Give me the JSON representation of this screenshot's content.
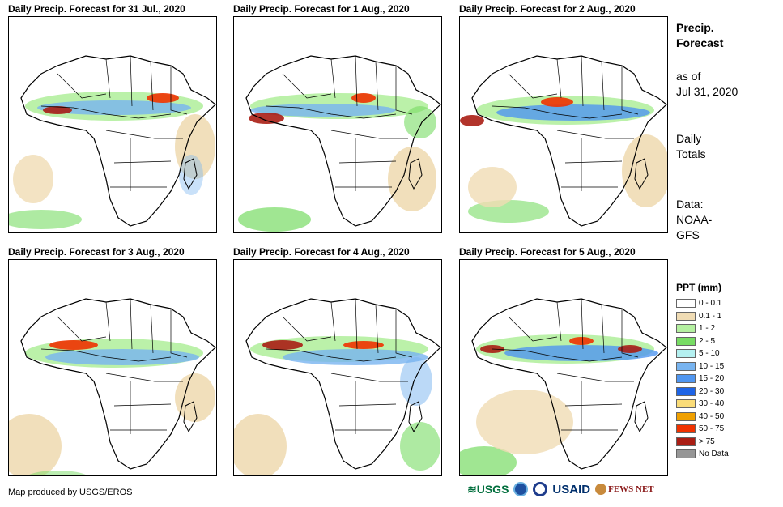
{
  "panels": [
    {
      "title": "Daily Precip. Forecast for 31 Jul., 2020"
    },
    {
      "title": "Daily Precip. Forecast for 1 Aug., 2020"
    },
    {
      "title": "Daily Precip. Forecast for 2 Aug., 2020"
    },
    {
      "title": "Daily Precip. Forecast for 3 Aug., 2020"
    },
    {
      "title": "Daily Precip. Forecast for 4 Aug., 2020"
    },
    {
      "title": "Daily Precip. Forecast for 5 Aug., 2020"
    }
  ],
  "side": {
    "heading_line1": "Precip.",
    "heading_line2": "Forecast",
    "asof_line1": "as of",
    "asof_line2": "Jul 31, 2020",
    "totals_line1": "Daily",
    "totals_line2": "Totals",
    "data_line1": "Data:",
    "data_line2": "NOAA-",
    "data_line3": "GFS"
  },
  "legend": {
    "title": "PPT (mm)",
    "items": [
      {
        "label": "0 - 0.1",
        "color": "#ffffff"
      },
      {
        "label": "0.1 - 1",
        "color": "#f0dcb4"
      },
      {
        "label": "1 - 2",
        "color": "#b4f0a0"
      },
      {
        "label": "2 - 5",
        "color": "#78dc64"
      },
      {
        "label": "5 - 10",
        "color": "#b4f0f0"
      },
      {
        "label": "10 - 15",
        "color": "#78b4f0"
      },
      {
        "label": "15 - 20",
        "color": "#5096f0"
      },
      {
        "label": "20 - 30",
        "color": "#1e64e6"
      },
      {
        "label": "30 - 40",
        "color": "#fadc78"
      },
      {
        "label": "40 - 50",
        "color": "#f0a000"
      },
      {
        "label": "50 - 75",
        "color": "#f03200"
      },
      {
        "label": "> 75",
        "color": "#aa1e14"
      },
      {
        "label": "No Data",
        "color": "#969696"
      }
    ]
  },
  "credit": "Map produced by USGS/EROS",
  "logos": {
    "usgs": "USGS",
    "usaid": "USAID",
    "fewsnet": "FEWS NET"
  }
}
